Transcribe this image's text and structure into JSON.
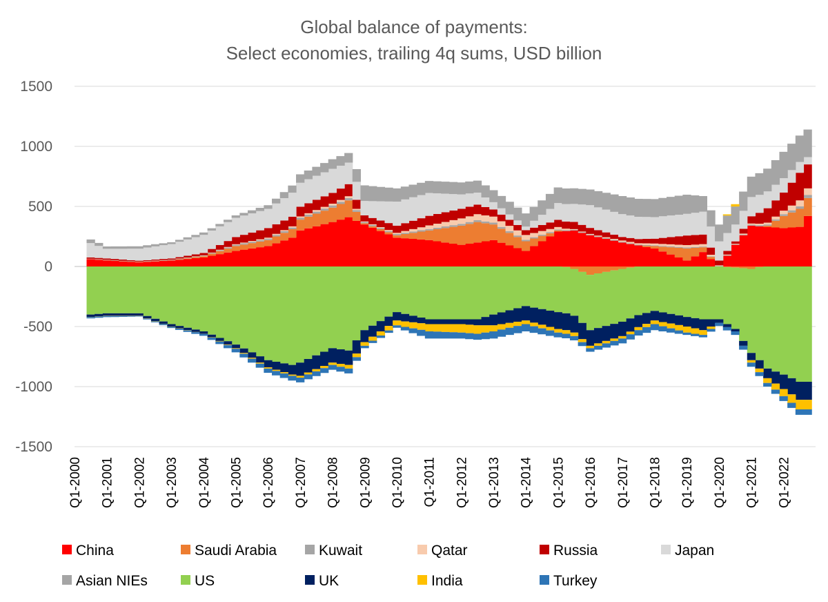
{
  "chart_data": {
    "type": "area",
    "stacked": true,
    "title_lines": [
      "Global balance of payments:",
      "Select economies, trailing 4q sums, USD billion"
    ],
    "xlabel": "",
    "ylabel": "",
    "ylim": [
      -1500,
      1500
    ],
    "yticks": [
      1500,
      1000,
      500,
      0,
      -500,
      -1000,
      -1500
    ],
    "x_range_years": [
      2000,
      2023
    ],
    "x_first_data_quarter": "Q3-2000",
    "xtick_labels": [
      "Q1-2000",
      "Q1-2001",
      "Q1-2002",
      "Q1-2003",
      "Q1-2004",
      "Q1-2005",
      "Q1-2006",
      "Q1-2007",
      "Q1-2008",
      "Q1-2009",
      "Q1-2010",
      "Q1-2011",
      "Q1-2012",
      "Q1-2013",
      "Q1-2014",
      "Q1-2015",
      "Q1-2016",
      "Q1-2017",
      "Q1-2018",
      "Q1-2019",
      "Q1-2020",
      "Q1-2021",
      "Q1-2022"
    ],
    "grid": "horizontal",
    "legend_position": "bottom",
    "series_anchor_years": [
      2000.5,
      2001,
      2002,
      2003,
      2004,
      2005,
      2006,
      2006.75,
      2007,
      2008,
      2008.5,
      2009,
      2010,
      2011,
      2012,
      2012.5,
      2013,
      2014,
      2015,
      2015.5,
      2016,
      2017,
      2018,
      2019,
      2019.5,
      2020,
      2020.5,
      2021,
      2021.5,
      2022,
      2022.5,
      2022.75
    ],
    "series": [
      {
        "name": "China",
        "color": "#ff0000",
        "values": [
          60,
          50,
          35,
          50,
          75,
          130,
          170,
          240,
          300,
          370,
          410,
          350,
          240,
          220,
          180,
          200,
          220,
          130,
          290,
          300,
          260,
          200,
          150,
          50,
          120,
          0,
          180,
          340,
          330,
          320,
          330,
          420
        ]
      },
      {
        "name": "Saudi Arabia",
        "color": "#ed7d31",
        "values": [
          2,
          2,
          2,
          2,
          10,
          40,
          50,
          70,
          90,
          120,
          140,
          10,
          20,
          80,
          160,
          170,
          130,
          80,
          10,
          -20,
          -70,
          -20,
          20,
          100,
          40,
          0,
          -10,
          -20,
          10,
          100,
          150,
          150
        ]
      },
      {
        "name": "Kuwait",
        "color": "#a5a5a5",
        "values": [
          2,
          2,
          2,
          3,
          5,
          10,
          12,
          14,
          15,
          18,
          20,
          10,
          10,
          12,
          15,
          15,
          15,
          12,
          8,
          6,
          6,
          6,
          6,
          8,
          6,
          4,
          4,
          8,
          10,
          15,
          20,
          25
        ]
      },
      {
        "name": "Qatar",
        "color": "#f8cbad",
        "values": [
          1,
          1,
          1,
          2,
          3,
          5,
          8,
          10,
          12,
          15,
          15,
          5,
          10,
          30,
          45,
          50,
          50,
          40,
          20,
          5,
          5,
          10,
          15,
          20,
          20,
          5,
          5,
          10,
          15,
          30,
          50,
          55
        ]
      },
      {
        "name": "Russia",
        "color": "#c00000",
        "values": [
          10,
          12,
          8,
          10,
          20,
          60,
          80,
          80,
          80,
          90,
          100,
          50,
          60,
          80,
          80,
          80,
          60,
          40,
          60,
          60,
          50,
          30,
          40,
          80,
          80,
          40,
          20,
          60,
          120,
          150,
          230,
          200
        ]
      },
      {
        "name": "Japan",
        "color": "#d9d9d9",
        "values": [
          120,
          80,
          100,
          120,
          150,
          160,
          160,
          200,
          200,
          200,
          180,
          120,
          200,
          190,
          120,
          100,
          60,
          30,
          140,
          150,
          190,
          190,
          180,
          180,
          190,
          160,
          140,
          160,
          140,
          120,
          90,
          60
        ]
      },
      {
        "name": "Asian NIEs",
        "color": "#a5a5a5",
        "values": [
          30,
          20,
          20,
          15,
          20,
          20,
          30,
          60,
          70,
          80,
          80,
          130,
          110,
          100,
          100,
          100,
          100,
          110,
          130,
          130,
          130,
          150,
          150,
          160,
          130,
          140,
          150,
          170,
          190,
          220,
          220,
          230
        ]
      },
      {
        "name": "US",
        "color": "#92d050",
        "values": [
          -400,
          -390,
          -390,
          -480,
          -540,
          -650,
          -780,
          -820,
          -800,
          -680,
          -700,
          -530,
          -380,
          -440,
          -440,
          -440,
          -400,
          -330,
          -380,
          -390,
          -460,
          -440,
          -370,
          -420,
          -440,
          -440,
          -510,
          -700,
          -850,
          -900,
          -960,
          -960
        ]
      },
      {
        "name": "UK",
        "color": "#002060",
        "values": [
          -20,
          -20,
          -20,
          -20,
          -20,
          -30,
          -60,
          -80,
          -110,
          -120,
          -120,
          -100,
          -70,
          -40,
          -40,
          -50,
          -90,
          -120,
          -140,
          -140,
          -130,
          -120,
          -80,
          -80,
          -90,
          -30,
          -20,
          -60,
          -80,
          -120,
          -150,
          -150
        ]
      },
      {
        "name": "India",
        "color": "#ffc000",
        "values": [
          -2,
          -2,
          -2,
          -2,
          -2,
          -5,
          -10,
          -10,
          -15,
          -20,
          -30,
          -30,
          -40,
          -60,
          -70,
          -70,
          -50,
          -30,
          -30,
          -30,
          -20,
          -20,
          -30,
          -50,
          -40,
          0,
          20,
          -20,
          -40,
          -60,
          -80,
          -80
        ]
      },
      {
        "name": "Turkey",
        "color": "#2e75b6",
        "values": [
          -10,
          -10,
          -5,
          -10,
          -15,
          -30,
          -35,
          -40,
          -40,
          -40,
          -40,
          -20,
          -20,
          -60,
          -50,
          -50,
          -60,
          -60,
          -40,
          -35,
          -30,
          -40,
          -50,
          -20,
          -20,
          -25,
          -30,
          -35,
          -30,
          -40,
          -45,
          -45
        ]
      }
    ]
  }
}
